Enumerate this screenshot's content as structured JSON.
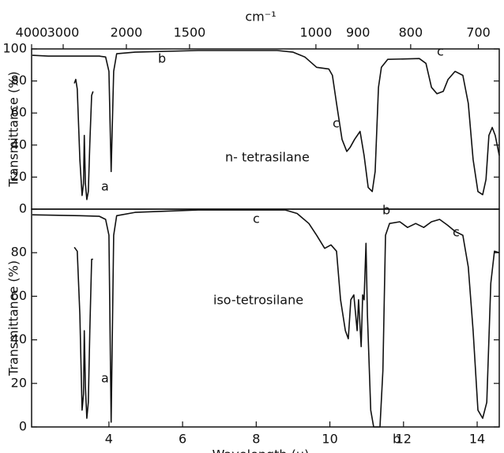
{
  "chart_data": [
    {
      "type": "line",
      "x2label": "cm⁻¹",
      "x2scale": "reciprocal",
      "x2lim": [
        4000,
        674
      ],
      "x2ticks": [
        4000,
        3000,
        2000,
        1500,
        1000,
        900,
        800,
        700
      ],
      "ylabel": "Transmittance  (%)",
      "xlim": [
        1.9,
        14.6
      ],
      "ylim": [
        0,
        100
      ],
      "yticks": [
        0,
        20,
        40,
        60,
        80,
        100
      ],
      "annotations": [
        "n- tetrasilane",
        "a",
        "b",
        "b",
        "c",
        "c"
      ],
      "x": [
        1.92,
        2.35,
        3.21,
        3.74,
        3.91,
        4.0,
        4.06,
        4.13,
        4.21,
        4.71,
        6.42,
        8.57,
        9.0,
        9.32,
        9.64,
        9.97,
        10.07,
        10.18,
        10.33,
        10.46,
        10.55,
        10.67,
        10.82,
        10.93,
        11.04,
        11.15,
        11.23,
        11.32,
        11.4,
        11.57,
        12.43,
        12.61,
        12.76,
        12.91,
        13.08,
        13.21,
        13.4,
        13.61,
        13.76,
        13.89,
        14.02,
        14.15,
        14.24,
        14.32,
        14.41,
        14.49,
        14.6,
        null,
        3.06,
        3.1,
        3.14,
        3.21,
        3.27,
        3.31,
        3.33,
        3.36,
        3.4,
        3.44,
        3.48,
        3.53,
        3.57
      ],
      "series": [
        {
          "color": "#111111",
          "values": [
            96,
            95.5,
            95.5,
            95.5,
            95,
            86,
            23.5,
            86,
            97,
            98,
            99,
            99,
            98,
            95,
            88.5,
            87.5,
            83.5,
            66,
            43.5,
            36,
            38.5,
            43.5,
            48.5,
            33.5,
            13.5,
            11,
            23.5,
            76,
            88.5,
            93.5,
            94,
            91,
            76,
            72,
            73.5,
            81,
            86,
            83.5,
            66,
            31,
            11,
            9,
            18.5,
            46,
            51,
            46,
            33.5,
            null,
            78.5,
            81,
            75,
            31,
            8.5,
            16,
            46,
            16,
            6,
            11,
            41,
            71,
            73.5
          ]
        }
      ]
    },
    {
      "type": "line",
      "xlabel": "Wavelength  (μ)",
      "ylabel": "Transmittance  (%)",
      "xlim": [
        1.9,
        14.6
      ],
      "xticks": [
        4,
        6,
        8,
        10,
        12,
        14
      ],
      "ylim": [
        0,
        100
      ],
      "yticks": [
        0,
        20,
        40,
        60,
        80
      ],
      "annotations": [
        "iso-tetrosilane",
        "a",
        "b",
        "c",
        "c"
      ],
      "x": [
        1.92,
        3.21,
        3.74,
        3.91,
        4.0,
        4.06,
        4.13,
        4.21,
        4.71,
        6.42,
        8.79,
        9.11,
        9.43,
        9.64,
        9.86,
        10.03,
        10.18,
        10.29,
        10.42,
        10.5,
        10.57,
        10.65,
        10.74,
        10.78,
        10.85,
        10.89,
        10.93,
        10.98,
        11.02,
        11.11,
        11.19,
        11.36,
        11.44,
        11.51,
        11.62,
        11.9,
        12.11,
        12.33,
        12.55,
        12.76,
        12.98,
        13.19,
        13.4,
        13.61,
        13.76,
        13.89,
        14.02,
        14.15,
        14.26,
        14.37,
        14.47,
        14.6,
        null,
        3.06,
        3.14,
        3.21,
        3.27,
        3.31,
        3.33,
        3.36,
        3.4,
        3.44,
        3.48,
        3.53,
        3.57
      ],
      "series": [
        {
          "color": "#111111",
          "values": [
            97.4,
            97,
            96.7,
            95.3,
            88,
            2.2,
            88,
            97,
            98.5,
            99.6,
            99.6,
            98,
            93.4,
            88,
            82,
            83.6,
            80.7,
            58.4,
            44.2,
            40.5,
            58.4,
            60.6,
            44.2,
            58.4,
            36.9,
            60.6,
            58.4,
            84.3,
            51.5,
            7.7,
            0,
            0,
            25.9,
            88,
            93.4,
            94.2,
            91.6,
            93.4,
            91.6,
            94.2,
            95.3,
            92.7,
            89.8,
            88,
            73.4,
            44.2,
            7.7,
            4,
            11.3,
            66,
            80.7,
            80,
            null,
            82.5,
            80.7,
            51.5,
            7.7,
            15,
            44.2,
            18.6,
            4,
            11.3,
            44.2,
            77,
            77
          ]
        }
      ]
    }
  ]
}
